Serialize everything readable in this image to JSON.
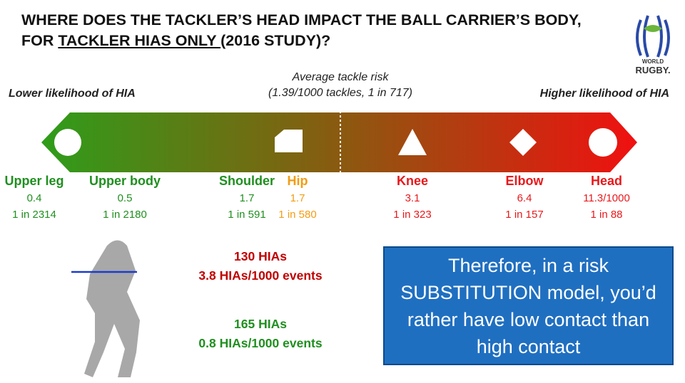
{
  "title": {
    "before": "WHERE DOES THE TACKLER’S HEAD IMPACT THE BALL CARRIER’S BODY, FOR ",
    "underlined": "TACKLER HIAS ONLY ",
    "after": "(2016 STUDY)?"
  },
  "logo": {
    "line1": "WORLD",
    "line2": "RUGBY."
  },
  "average": {
    "label": "Average tackle risk",
    "detail": "(1.39/1000 tackles, 1 in 717)"
  },
  "scale": {
    "low": "Lower likelihood of HIA",
    "high": "Higher likelihood of HIA"
  },
  "parts": [
    {
      "name": "Upper leg",
      "rate": "0.4",
      "odds": "1 in 2314",
      "color": "#1f8f1f"
    },
    {
      "name": "Upper body",
      "rate": "0.5",
      "odds": "1 in 2180",
      "color": "#1f8f1f"
    },
    {
      "name": "Shoulder",
      "rate": "1.7",
      "odds": "1 in 591",
      "color": "#1f8f1f"
    },
    {
      "name": "Hip",
      "rate": "1.7",
      "odds": "1 in 580",
      "color": "#f39c12"
    },
    {
      "name": "Knee",
      "rate": "3.1",
      "odds": "1 in 323",
      "color": "#e8191c"
    },
    {
      "name": "Elbow",
      "rate": "6.4",
      "odds": "1 in 157",
      "color": "#e8191c"
    },
    {
      "name": "Head",
      "rate": "11.3/1000",
      "odds": "1 in 88",
      "color": "#e8191c"
    }
  ],
  "stats": [
    {
      "count": "130 HIAs",
      "rate": "3.8 HIAs/1000 events",
      "color": "#c00000"
    },
    {
      "count": "165 HIAs",
      "rate": "0.8 HIAs/1000 events",
      "color": "#1f8f1f"
    }
  ],
  "callout": "Therefore, in a risk SUBSTITUTION model, you’d rather have low contact than high contact"
}
